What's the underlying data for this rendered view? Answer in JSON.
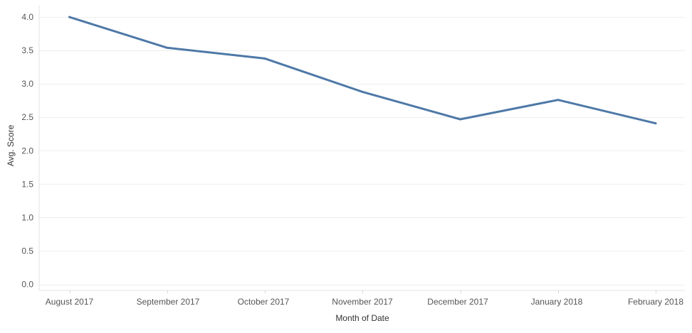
{
  "chart_data": {
    "type": "line",
    "title": "",
    "xlabel": "Month of Date",
    "ylabel": "Avg. Score",
    "categories": [
      "August 2017",
      "September 2017",
      "October 2017",
      "November 2017",
      "December 2017",
      "January 2018",
      "February 2018"
    ],
    "series": [
      {
        "name": "",
        "values": [
          4.0,
          3.54,
          3.38,
          2.88,
          2.47,
          2.76,
          2.41
        ]
      }
    ],
    "ylim": [
      0,
      4.2
    ],
    "yticks": [
      0.0,
      0.5,
      1.0,
      1.5,
      2.0,
      2.5,
      3.0,
      3.5,
      4.0
    ],
    "ytick_labels": [
      "0.0",
      "0.5",
      "1.0",
      "1.5",
      "2.0",
      "2.5",
      "3.0",
      "3.5",
      "4.0"
    ],
    "grid": true,
    "legend": "none",
    "line_color": "#4e79a7"
  }
}
